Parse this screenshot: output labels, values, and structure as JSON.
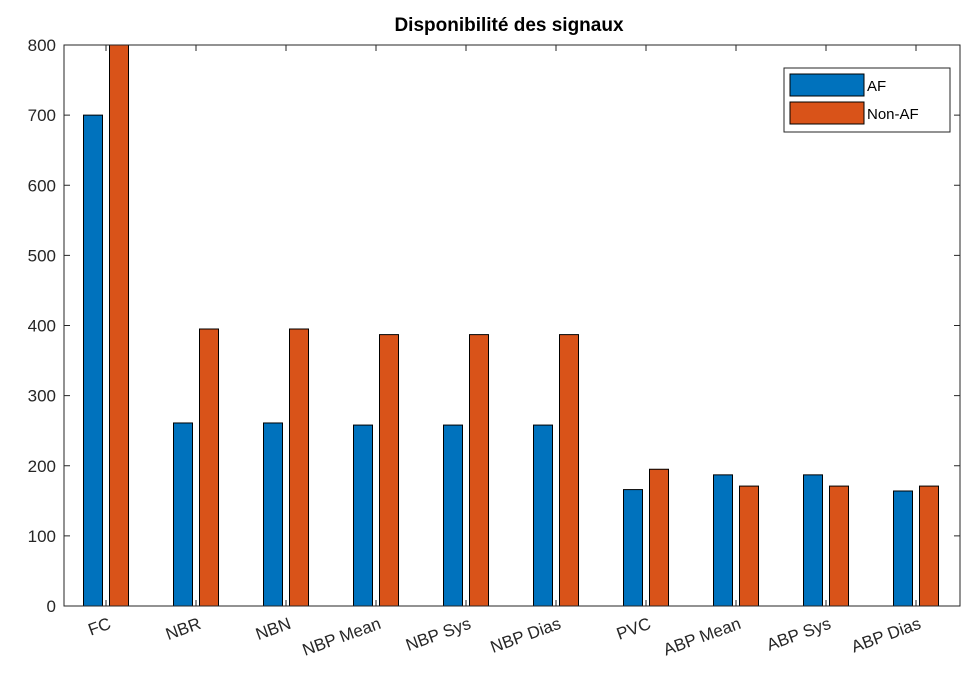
{
  "chart_data": {
    "type": "bar",
    "title": "Disponibilité des signaux",
    "xlabel": "",
    "ylabel": "",
    "categories": [
      "FC",
      "NBR",
      "NBN",
      "NBP Mean",
      "NBP Sys",
      "NBP Dias",
      "PVC",
      "ABP Mean",
      "ABP Sys",
      "ABP Dias"
    ],
    "series": [
      {
        "name": "AF",
        "color": "#0072BD",
        "values": [
          700,
          261,
          261,
          258,
          258,
          258,
          166,
          187,
          187,
          164
        ]
      },
      {
        "name": "Non-AF",
        "color": "#D95319",
        "values": [
          800,
          395,
          395,
          387,
          387,
          387,
          195,
          171,
          171,
          171
        ]
      }
    ],
    "ylim": [
      0,
      800
    ],
    "yticks": [
      0,
      100,
      200,
      300,
      400,
      500,
      600,
      700,
      800
    ],
    "grid": false,
    "legend_position": "top-right"
  }
}
